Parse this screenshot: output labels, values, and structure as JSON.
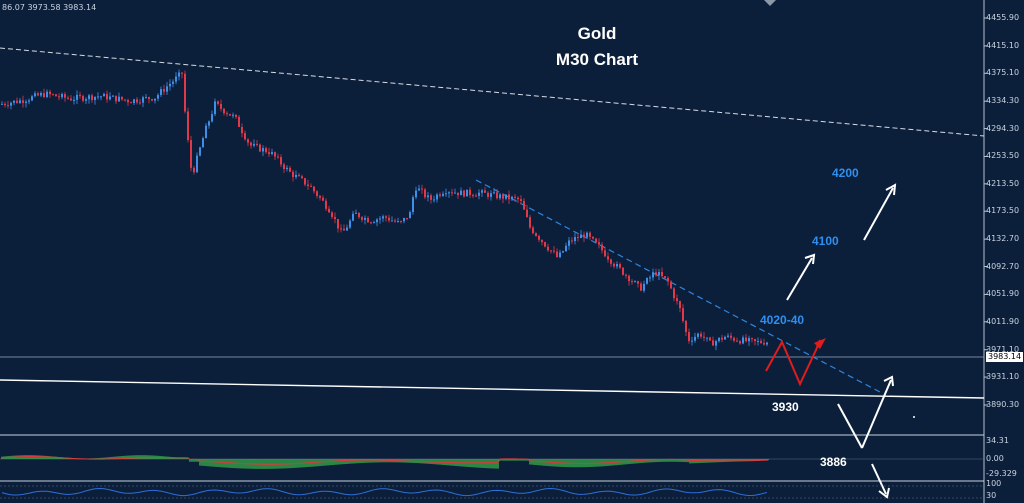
{
  "ohlc_readout": "86.07 3973.58 3983.14",
  "title": {
    "line1": "Gold",
    "line2": "M30 Chart"
  },
  "levels": {
    "l4200": "4200",
    "l4100": "4100",
    "l4020": "4020-40",
    "l3930": "3930",
    "l3886": "3886"
  },
  "price_axis": [
    {
      "label": "4455.90",
      "value": 4455.9
    },
    {
      "label": "4415.10",
      "value": 4415.1
    },
    {
      "label": "4375.10",
      "value": 4375.1
    },
    {
      "label": "4334.30",
      "value": 4334.3
    },
    {
      "label": "4294.30",
      "value": 4294.3
    },
    {
      "label": "4253.50",
      "value": 4253.5
    },
    {
      "label": "4213.50",
      "value": 4213.5
    },
    {
      "label": "4173.50",
      "value": 4173.5
    },
    {
      "label": "4132.70",
      "value": 4132.7
    },
    {
      "label": "4092.70",
      "value": 4092.7
    },
    {
      "label": "4051.90",
      "value": 4051.9
    },
    {
      "label": "4011.90",
      "value": 4011.9
    },
    {
      "label": "3971.10",
      "value": 3971.1
    },
    {
      "label": "3931.10",
      "value": 3931.1
    },
    {
      "label": "3890.30",
      "value": 3890.3
    }
  ],
  "current_price": "3983.14",
  "macd_axis": [
    {
      "label": "34.31",
      "value": 34.31
    },
    {
      "label": "0.00",
      "value": 0
    },
    {
      "label": "-29.329",
      "value": -29.329
    }
  ],
  "rsi_axis": [
    {
      "label": "100",
      "value": 100
    },
    {
      "label": "30",
      "value": 30
    }
  ],
  "colors": {
    "background": "#0c1f3a",
    "up_candle": "#3f8fe8",
    "down_candle": "#e0394b",
    "macd_hist": "#3cbf4e",
    "macd_signal": "#d93b3b",
    "trend_line": "#ffffff",
    "projection_up": "#ffffff",
    "projection_red": "#e01c1c",
    "descending_channel": "#2e86de",
    "rsi_line": "#2f6fd8"
  }
}
